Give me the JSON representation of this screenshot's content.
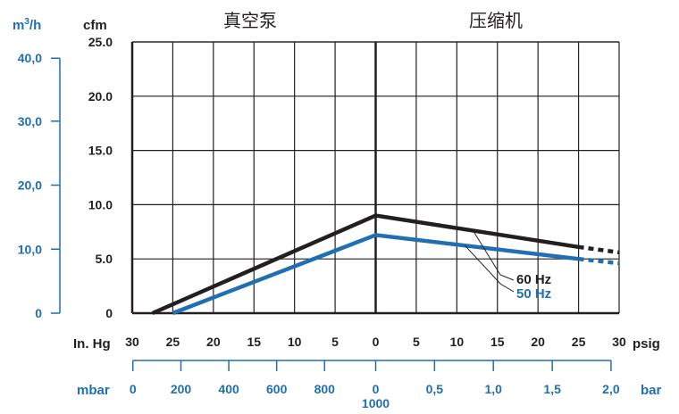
{
  "chart_data": {
    "type": "line",
    "section_labels": {
      "left": "真空泵",
      "right": "压缩机"
    },
    "axes": {
      "y_primary": {
        "unit": "cfm",
        "ylim": [
          0,
          25
        ],
        "ticks": [
          "0",
          "5.0",
          "10.0",
          "15.0",
          "20.0",
          "25.0"
        ]
      },
      "y_secondary": {
        "unit": "m",
        "unit_sup": "3",
        "unit_tail": "/h",
        "ticks": [
          {
            "label": "0",
            "cfm": 0
          },
          {
            "label": "10,0",
            "cfm": 5.9
          },
          {
            "label": "20,0",
            "cfm": 11.8
          },
          {
            "label": "30,0",
            "cfm": 17.7
          },
          {
            "label": "40,0",
            "cfm": 23.5
          }
        ]
      },
      "x_primary": {
        "left_unit": "In. Hg",
        "right_unit": "psig",
        "left_ticks": [
          "30",
          "25",
          "20",
          "15",
          "10",
          "5"
        ],
        "zero": "0",
        "right_ticks": [
          "5",
          "10",
          "15",
          "20",
          "25",
          "30"
        ]
      },
      "x_secondary": {
        "left_unit": "mbar",
        "right_unit": "bar",
        "left_ticks": [
          {
            "label": "0",
            "inhg": 29.92
          },
          {
            "label": "200",
            "inhg": 24.0
          },
          {
            "label": "400",
            "inhg": 18.1
          },
          {
            "label": "600",
            "inhg": 12.2
          },
          {
            "label": "800",
            "inhg": 6.3
          }
        ],
        "zero_top": "0",
        "zero_bottom": "1000",
        "right_ticks": [
          {
            "label": "0,5",
            "psig": 7.25
          },
          {
            "label": "1,0",
            "psig": 14.5
          },
          {
            "label": "1,5",
            "psig": 21.76
          },
          {
            "label": "2,0",
            "psig": 29.0
          }
        ]
      }
    },
    "series": [
      {
        "name": "60 Hz",
        "color": "#231f20",
        "solid": [
          {
            "x": -27.5,
            "y": 0
          },
          {
            "x": 0,
            "y": 9.0
          },
          {
            "x": 25,
            "y": 6.1
          }
        ],
        "dotted": [
          {
            "x": 25,
            "y": 6.1
          },
          {
            "x": 30,
            "y": 5.6
          }
        ]
      },
      {
        "name": "50 Hz",
        "color": "#1f6fb2",
        "solid": [
          {
            "x": -25,
            "y": 0
          },
          {
            "x": 0,
            "y": 7.2
          },
          {
            "x": 25,
            "y": 5.0
          }
        ],
        "dotted": [
          {
            "x": 25,
            "y": 5.0
          },
          {
            "x": 30,
            "y": 4.6
          }
        ]
      }
    ],
    "grid": true
  },
  "colors": {
    "black": "#231f20",
    "blue": "#1f6fb2"
  }
}
